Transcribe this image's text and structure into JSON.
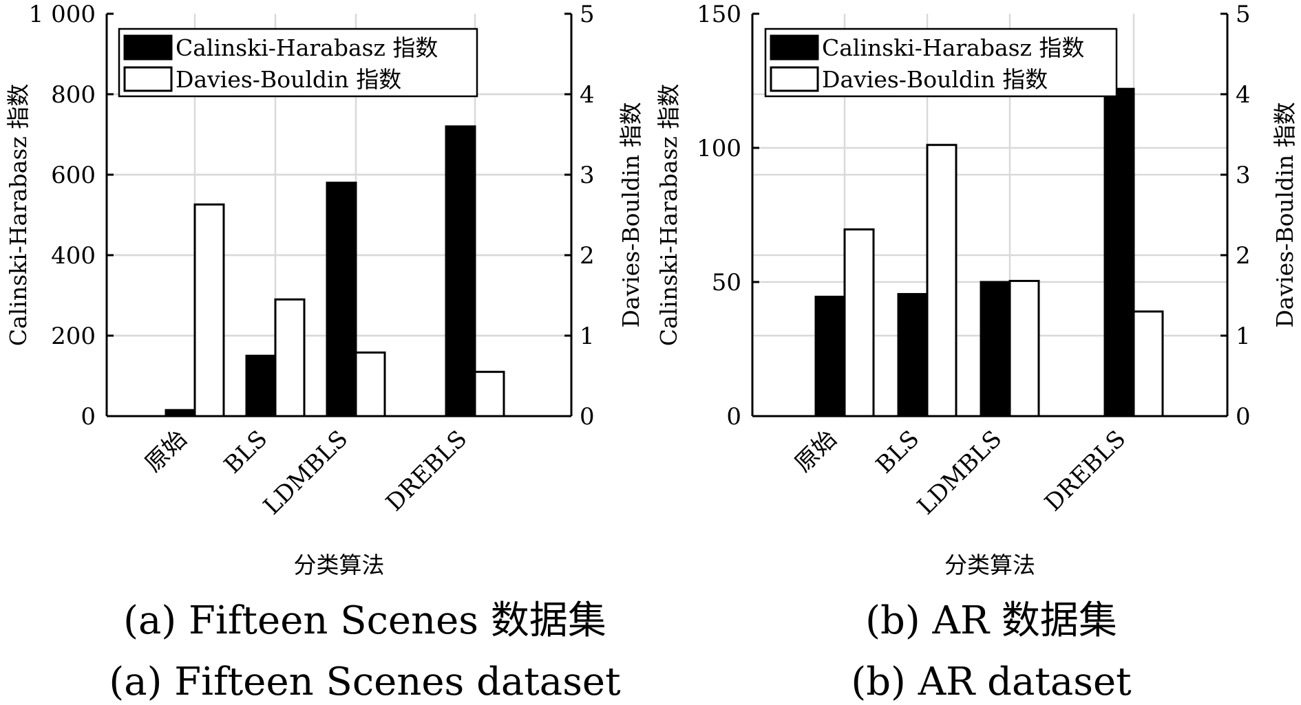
{
  "chart_data": [
    {
      "type": "bar",
      "caption_cn": "(a) Fifteen Scenes 数据集",
      "caption_en": "(a) Fifteen Scenes dataset",
      "xlabel": "分类算法",
      "ylabel_left": "Calinski-Harabasz 指数",
      "ylabel_right": "Davies-Bouldin 指数",
      "categories": [
        "原始",
        "BLS",
        "LDMBLS",
        "DREBLS"
      ],
      "ylim_left": [
        0,
        1000
      ],
      "ylim_right": [
        0,
        5
      ],
      "yticks_left": [
        "0",
        "200",
        "400",
        "600",
        "800",
        "1 000"
      ],
      "yticks_right": [
        "0",
        "1",
        "2",
        "3",
        "4",
        "5"
      ],
      "grid": true,
      "legend_position": "top-left",
      "series": [
        {
          "name": "Calinski-Harabasz 指数",
          "axis": "left",
          "color": "#000000",
          "values": [
            15,
            150,
            580,
            720
          ]
        },
        {
          "name": "Davies-Bouldin 指数",
          "axis": "right",
          "color": "#ffffff",
          "values": [
            2.63,
            1.45,
            0.79,
            0.55
          ]
        }
      ]
    },
    {
      "type": "bar",
      "caption_cn": "(b) AR 数据集",
      "caption_en": "(b) AR dataset",
      "xlabel": "分类算法",
      "ylabel_left": "Calinski-Harabasz 指数",
      "ylabel_right": "Davies-Bouldin 指数",
      "categories": [
        "原始",
        "BLS",
        "LDMBLS",
        "DREBLS"
      ],
      "ylim_left": [
        0,
        150
      ],
      "ylim_right": [
        0,
        5
      ],
      "yticks_left": [
        "0",
        "50",
        "100",
        "150"
      ],
      "yticks_right": [
        "0",
        "1",
        "2",
        "3",
        "4",
        "5"
      ],
      "grid": true,
      "legend_position": "top-left",
      "series": [
        {
          "name": "Calinski-Harabasz 指数",
          "axis": "left",
          "color": "#000000",
          "values": [
            44.5,
            45.5,
            50,
            122
          ]
        },
        {
          "name": "Davies-Bouldin 指数",
          "axis": "right",
          "color": "#ffffff",
          "values": [
            2.32,
            3.37,
            1.68,
            1.3
          ]
        }
      ]
    }
  ]
}
